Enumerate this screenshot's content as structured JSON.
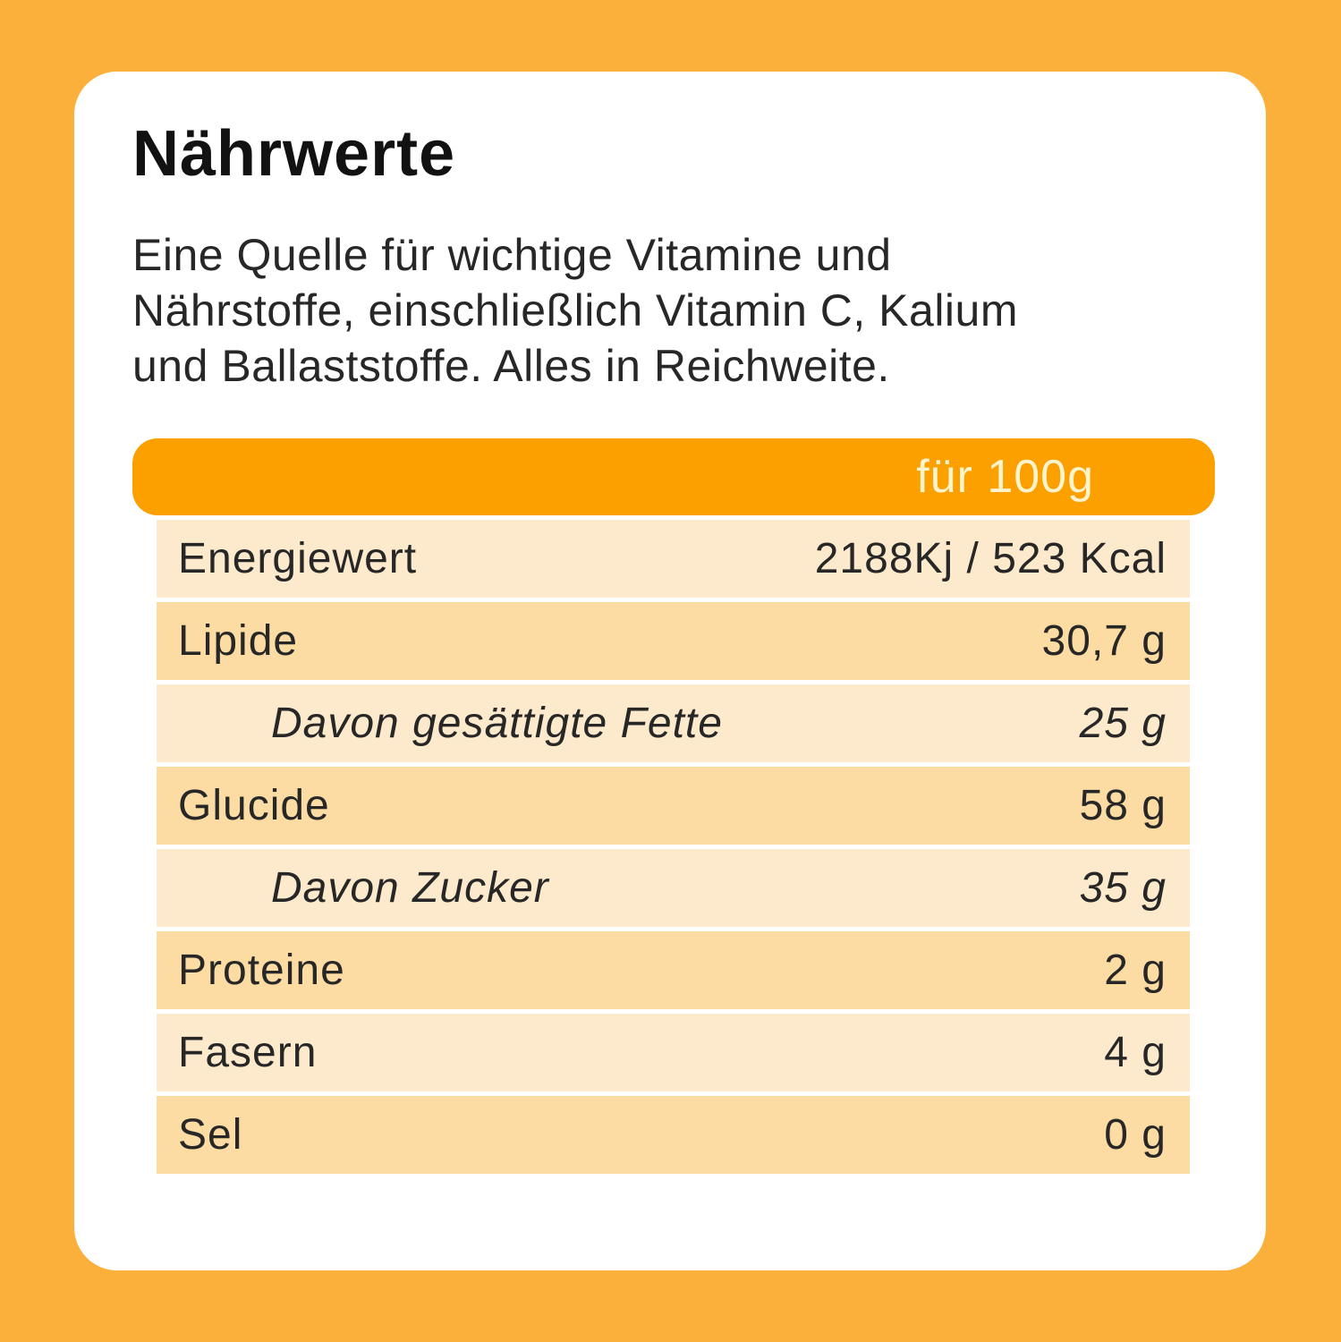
{
  "page": {
    "background_color": "#FCB03C",
    "card_color": "#FFFFFF"
  },
  "card": {
    "title": "Nährwerte",
    "description_lines": [
      "Eine Quelle für wichtige Vitamine und",
      "Nährstoffe, einschließlich Vitamin C, Kalium",
      "und Ballaststoffe. Alles in Reichweite."
    ]
  },
  "table": {
    "header": {
      "label": "für 100g",
      "background_color": "#FCA000",
      "text_color": "#FDF3CD"
    },
    "row_colors": {
      "light": "#FDE9CB",
      "dark": "#FCDCA3"
    },
    "rows": [
      {
        "label": "Energiewert",
        "value": "2188Kj / 523 Kcal",
        "indent": false
      },
      {
        "label": "Lipide",
        "value": "30,7 g",
        "indent": false
      },
      {
        "label": "Davon gesättigte Fette",
        "value": "25 g",
        "indent": true
      },
      {
        "label": "Glucide",
        "value": "58 g",
        "indent": false
      },
      {
        "label": "Davon Zucker",
        "value": "35 g",
        "indent": true
      },
      {
        "label": "Proteine",
        "value": "2 g",
        "indent": false
      },
      {
        "label": "Fasern",
        "value": "4 g",
        "indent": false
      },
      {
        "label": "Sel",
        "value": "0 g",
        "indent": false
      }
    ]
  }
}
